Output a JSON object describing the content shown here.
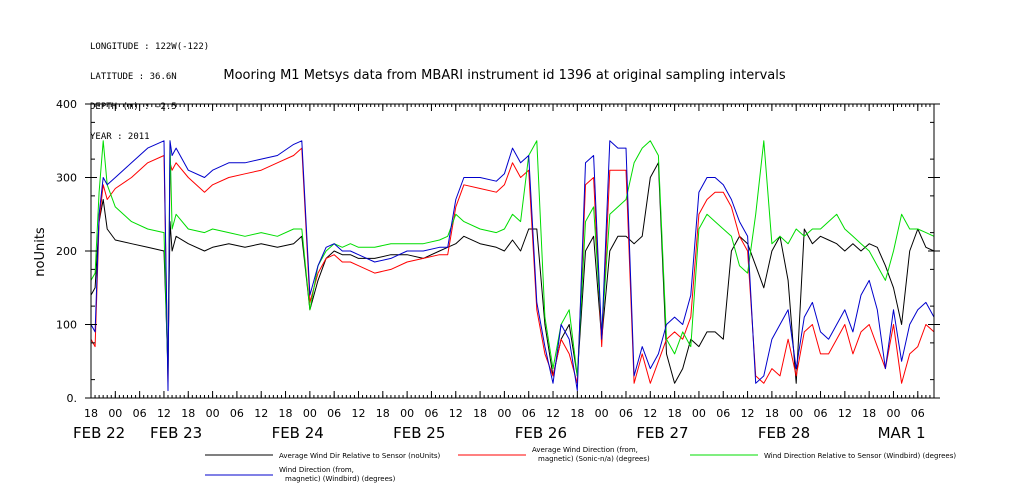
{
  "meta": {
    "longitude": "LONGITUDE : 122W(-122)",
    "latitude": "LATITUDE : 36.6N",
    "depth": "DEPTH (m) : -2.5",
    "year": "YEAR : 2011"
  },
  "chart_data": {
    "type": "line",
    "title": "Mooring M1 Metsys data from MBARI instrument id 1396 at original sampling intervals",
    "ylabel": "noUnits",
    "xlabel": "",
    "ylim": [
      0,
      400
    ],
    "xlim": [
      0,
      208
    ],
    "x_units": "hours since Feb 21 18:00, 2011",
    "yticks": [
      "0.",
      "100",
      "200",
      "300",
      "400"
    ],
    "hour_ticks": [
      {
        "x": 0,
        "label": "18"
      },
      {
        "x": 6,
        "label": "00"
      },
      {
        "x": 12,
        "label": "06"
      },
      {
        "x": 18,
        "label": "12"
      },
      {
        "x": 24,
        "label": "18"
      },
      {
        "x": 30,
        "label": "00"
      },
      {
        "x": 36,
        "label": "06"
      },
      {
        "x": 42,
        "label": "12"
      },
      {
        "x": 48,
        "label": "18"
      },
      {
        "x": 54,
        "label": "00"
      },
      {
        "x": 60,
        "label": "06"
      },
      {
        "x": 66,
        "label": "12"
      },
      {
        "x": 72,
        "label": "18"
      },
      {
        "x": 78,
        "label": "00"
      },
      {
        "x": 84,
        "label": "06"
      },
      {
        "x": 90,
        "label": "12"
      },
      {
        "x": 96,
        "label": "18"
      },
      {
        "x": 102,
        "label": "00"
      },
      {
        "x": 108,
        "label": "06"
      },
      {
        "x": 114,
        "label": "12"
      },
      {
        "x": 120,
        "label": "18"
      },
      {
        "x": 126,
        "label": "00"
      },
      {
        "x": 132,
        "label": "06"
      },
      {
        "x": 138,
        "label": "12"
      },
      {
        "x": 144,
        "label": "18"
      },
      {
        "x": 150,
        "label": "00"
      },
      {
        "x": 156,
        "label": "06"
      },
      {
        "x": 162,
        "label": "12"
      },
      {
        "x": 168,
        "label": "18"
      },
      {
        "x": 174,
        "label": "00"
      },
      {
        "x": 180,
        "label": "06"
      },
      {
        "x": 186,
        "label": "12"
      },
      {
        "x": 192,
        "label": "18"
      },
      {
        "x": 198,
        "label": "00"
      },
      {
        "x": 204,
        "label": "06"
      }
    ],
    "day_labels": [
      {
        "x": 2,
        "label": "FEB 22"
      },
      {
        "x": 21,
        "label": "FEB 23"
      },
      {
        "x": 51,
        "label": "FEB 24"
      },
      {
        "x": 81,
        "label": "FEB 25"
      },
      {
        "x": 111,
        "label": "FEB 26"
      },
      {
        "x": 141,
        "label": "FEB 27"
      },
      {
        "x": 171,
        "label": "FEB 28"
      },
      {
        "x": 200,
        "label": "MAR  1"
      }
    ],
    "series": [
      {
        "name": "Average Wind Dir Relative to Sensor (noUnits)",
        "color": "#000000",
        "x": [
          0,
          1,
          2,
          3,
          4,
          6,
          10,
          14,
          18,
          19,
          19.5,
          20,
          21,
          24,
          28,
          30,
          34,
          38,
          42,
          46,
          50,
          52,
          54,
          56,
          58,
          60,
          62,
          64,
          66,
          70,
          74,
          78,
          82,
          86,
          88,
          90,
          92,
          96,
          100,
          102,
          104,
          106,
          108,
          110,
          112,
          114,
          116,
          118,
          120,
          122,
          124,
          126,
          128,
          130,
          132,
          134,
          136,
          138,
          140,
          142,
          144,
          146,
          148,
          150,
          152,
          154,
          156,
          158,
          160,
          162,
          164,
          166,
          168,
          170,
          172,
          174,
          176,
          178,
          180,
          182,
          184,
          186,
          188,
          190,
          192,
          194,
          196,
          198,
          200,
          202,
          204,
          206,
          208
        ],
        "y": [
          140,
          150,
          240,
          270,
          230,
          215,
          210,
          205,
          200,
          40,
          240,
          200,
          220,
          210,
          200,
          205,
          210,
          205,
          210,
          205,
          210,
          220,
          120,
          160,
          190,
          200,
          195,
          195,
          190,
          190,
          195,
          195,
          190,
          200,
          205,
          210,
          220,
          210,
          205,
          200,
          215,
          200,
          230,
          230,
          100,
          30,
          80,
          100,
          30,
          200,
          220,
          80,
          200,
          220,
          220,
          210,
          220,
          300,
          320,
          60,
          20,
          40,
          80,
          70,
          90,
          90,
          80,
          200,
          220,
          210,
          180,
          150,
          200,
          220,
          160,
          20,
          230,
          210,
          220,
          215,
          210,
          200,
          210,
          200,
          210,
          205,
          180,
          150,
          100,
          200,
          230,
          205,
          200
        ]
      },
      {
        "name": "Average Wind Direction (from, magnetic) (Sonic-n/a) (degrees)",
        "color": "#ff0000",
        "x": [
          0,
          1,
          2,
          3,
          4,
          6,
          10,
          14,
          18,
          19,
          19.5,
          20,
          21,
          24,
          28,
          30,
          34,
          38,
          42,
          46,
          50,
          52,
          54,
          56,
          58,
          60,
          62,
          64,
          66,
          70,
          74,
          78,
          82,
          86,
          88,
          90,
          92,
          96,
          100,
          102,
          104,
          106,
          108,
          110,
          112,
          114,
          116,
          118,
          120,
          122,
          124,
          126,
          128,
          130,
          132,
          134,
          136,
          138,
          140,
          142,
          144,
          146,
          148,
          150,
          152,
          154,
          156,
          158,
          160,
          162,
          164,
          166,
          168,
          170,
          172,
          174,
          176,
          178,
          180,
          182,
          184,
          186,
          188,
          190,
          192,
          194,
          196,
          198,
          200,
          202,
          204,
          206,
          208
        ],
        "y": [
          80,
          70,
          240,
          290,
          270,
          285,
          300,
          320,
          330,
          20,
          320,
          310,
          320,
          300,
          280,
          290,
          300,
          305,
          310,
          320,
          330,
          340,
          130,
          170,
          190,
          195,
          185,
          185,
          180,
          170,
          175,
          185,
          190,
          195,
          195,
          260,
          290,
          285,
          280,
          290,
          320,
          300,
          310,
          120,
          60,
          30,
          80,
          60,
          20,
          290,
          300,
          70,
          310,
          310,
          310,
          20,
          60,
          20,
          50,
          80,
          90,
          80,
          110,
          250,
          270,
          280,
          280,
          260,
          220,
          200,
          30,
          20,
          40,
          30,
          80,
          30,
          90,
          100,
          60,
          60,
          80,
          100,
          60,
          90,
          100,
          70,
          40,
          100,
          20,
          60,
          70,
          100,
          90
        ]
      },
      {
        "name": "Wind Direction Relative to Sensor (Windbird) (degrees)",
        "color": "#00dd00",
        "x": [
          0,
          1,
          2,
          3,
          4,
          6,
          10,
          14,
          18,
          19,
          19.5,
          20,
          21,
          24,
          28,
          30,
          34,
          38,
          42,
          46,
          50,
          52,
          54,
          56,
          58,
          60,
          62,
          64,
          66,
          70,
          74,
          78,
          82,
          86,
          88,
          90,
          92,
          96,
          100,
          102,
          104,
          106,
          108,
          110,
          112,
          114,
          116,
          118,
          120,
          122,
          124,
          126,
          128,
          130,
          132,
          134,
          136,
          138,
          140,
          142,
          144,
          146,
          148,
          150,
          152,
          154,
          156,
          158,
          160,
          162,
          164,
          166,
          168,
          170,
          172,
          174,
          176,
          178,
          180,
          182,
          184,
          186,
          188,
          190,
          192,
          194,
          196,
          198,
          200,
          202,
          204,
          206,
          208
        ],
        "y": [
          160,
          170,
          280,
          350,
          290,
          260,
          240,
          230,
          225,
          30,
          350,
          230,
          250,
          230,
          225,
          230,
          225,
          220,
          225,
          220,
          230,
          230,
          120,
          180,
          200,
          210,
          205,
          210,
          205,
          205,
          210,
          210,
          210,
          215,
          220,
          250,
          240,
          230,
          225,
          230,
          250,
          240,
          330,
          350,
          110,
          40,
          100,
          120,
          30,
          240,
          260,
          90,
          250,
          260,
          270,
          320,
          340,
          350,
          330,
          80,
          60,
          90,
          70,
          230,
          250,
          240,
          230,
          220,
          180,
          170,
          250,
          350,
          210,
          220,
          210,
          230,
          220,
          230,
          230,
          240,
          250,
          230,
          220,
          210,
          200,
          180,
          160,
          200,
          250,
          230,
          230,
          225,
          220
        ]
      },
      {
        "name": "Wind Direction (from, magnetic) (Windbird) (degrees)",
        "color": "#0000cc",
        "x": [
          0,
          1,
          2,
          3,
          4,
          6,
          10,
          14,
          18,
          19,
          19.5,
          20,
          21,
          24,
          28,
          30,
          34,
          38,
          42,
          46,
          50,
          52,
          54,
          56,
          58,
          60,
          62,
          64,
          66,
          70,
          74,
          78,
          82,
          86,
          88,
          90,
          92,
          96,
          100,
          102,
          104,
          106,
          108,
          110,
          112,
          114,
          116,
          118,
          120,
          122,
          124,
          126,
          128,
          130,
          132,
          134,
          136,
          138,
          140,
          142,
          144,
          146,
          148,
          150,
          152,
          154,
          156,
          158,
          160,
          162,
          164,
          166,
          168,
          170,
          172,
          174,
          176,
          178,
          180,
          182,
          184,
          186,
          188,
          190,
          192,
          194,
          196,
          198,
          200,
          202,
          204,
          206,
          208
        ],
        "y": [
          100,
          90,
          250,
          300,
          290,
          300,
          320,
          340,
          350,
          10,
          350,
          330,
          340,
          310,
          300,
          310,
          320,
          320,
          325,
          330,
          345,
          350,
          140,
          180,
          205,
          210,
          200,
          200,
          195,
          185,
          190,
          200,
          200,
          205,
          205,
          270,
          300,
          300,
          295,
          305,
          340,
          320,
          330,
          130,
          70,
          20,
          100,
          80,
          10,
          320,
          330,
          80,
          350,
          340,
          340,
          30,
          70,
          40,
          60,
          100,
          110,
          100,
          140,
          280,
          300,
          300,
          290,
          270,
          240,
          220,
          20,
          30,
          80,
          100,
          120,
          40,
          110,
          130,
          90,
          80,
          100,
          120,
          90,
          140,
          160,
          120,
          40,
          120,
          50,
          100,
          120,
          130,
          110
        ]
      }
    ],
    "legend": [
      {
        "name": "Average Wind Dir Relative to Sensor (noUnits)",
        "lines": [
          "Average Wind Dir Relative to Sensor (noUnits)"
        ],
        "color": "#000000"
      },
      {
        "name": "Average Wind Direction (from, magnetic) (Sonic-n/a) (degrees)",
        "lines": [
          "Average Wind Direction (from,",
          "magnetic) (Sonic-n/a) (degrees)"
        ],
        "color": "#ff0000"
      },
      {
        "name": "Wind Direction Relative to Sensor (Windbird) (degrees)",
        "lines": [
          "Wind Direction Relative to Sensor (Windbird) (degrees)"
        ],
        "color": "#00dd00"
      },
      {
        "name": "Wind Direction (from, magnetic) (Windbird) (degrees)",
        "lines": [
          "Wind Direction (from,",
          "magnetic) (Windbird) (degrees)"
        ],
        "color": "#0000cc"
      }
    ]
  }
}
